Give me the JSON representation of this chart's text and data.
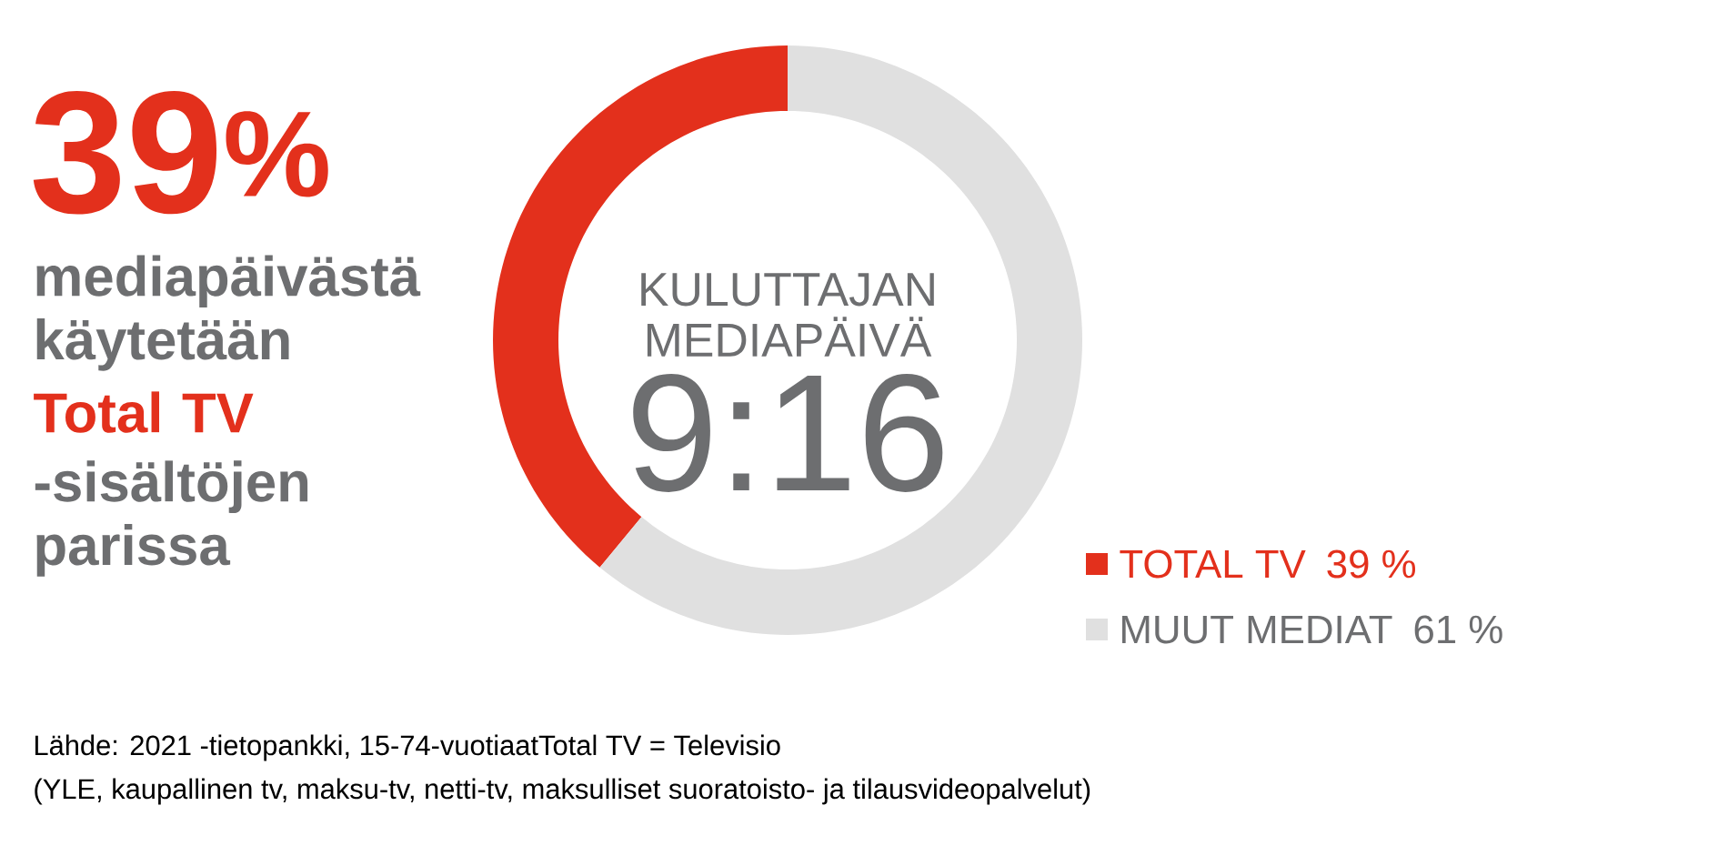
{
  "chart_data": {
    "type": "donut",
    "title": "KULUTTAJAN MEDIAPÄIVÄ",
    "subtitle": "9:16",
    "categories": [
      "TOTAL TV",
      "MUUT MEDIAT"
    ],
    "values": [
      39,
      61
    ],
    "colors": [
      "#e3301c",
      "#e0e0e0"
    ],
    "value_labels": [
      "39 %",
      "61 %"
    ],
    "legend": "bottom right",
    "annotations": [
      "39$^{%}$",
      "mediapäivästä käytetään",
      "Total TV",
      "-sisältöjen parissa",
      "Lähde: 2021 -tietopankki, 15-74-vuotiaatTotal TV = Televisio",
      "(YLE, kaupallinen tv, maksu-tv, netti-tv, maksulliset suoratoisto- ja tilausvideopalvelut)"
    ]
  }
}
